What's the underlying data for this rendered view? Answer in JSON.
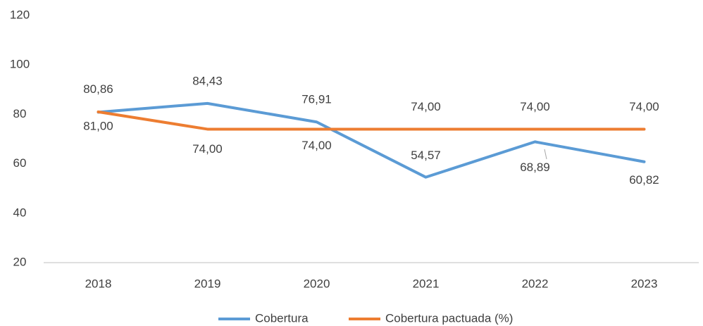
{
  "chart_data": {
    "type": "line",
    "categories": [
      "2018",
      "2019",
      "2020",
      "2021",
      "2022",
      "2023"
    ],
    "series": [
      {
        "name": "Cobertura",
        "color": "#5b9bd5",
        "values": [
          80.86,
          84.43,
          76.91,
          54.57,
          68.89,
          60.82
        ],
        "value_labels": [
          "80,86",
          "84,43",
          "76,91",
          "54,57",
          "68,89",
          "60,82"
        ]
      },
      {
        "name": "Cobertura pactuada (%)",
        "color": "#ed7d31",
        "values": [
          81,
          74,
          74,
          74,
          74,
          74
        ],
        "value_labels": [
          "81,00",
          "74,00",
          "74,00",
          "74,00",
          "74,00",
          "74,00"
        ]
      }
    ],
    "ylim": [
      20,
      120
    ],
    "yticks": [
      20,
      40,
      60,
      80,
      100,
      120
    ],
    "grid": false,
    "legend": "bottom"
  }
}
